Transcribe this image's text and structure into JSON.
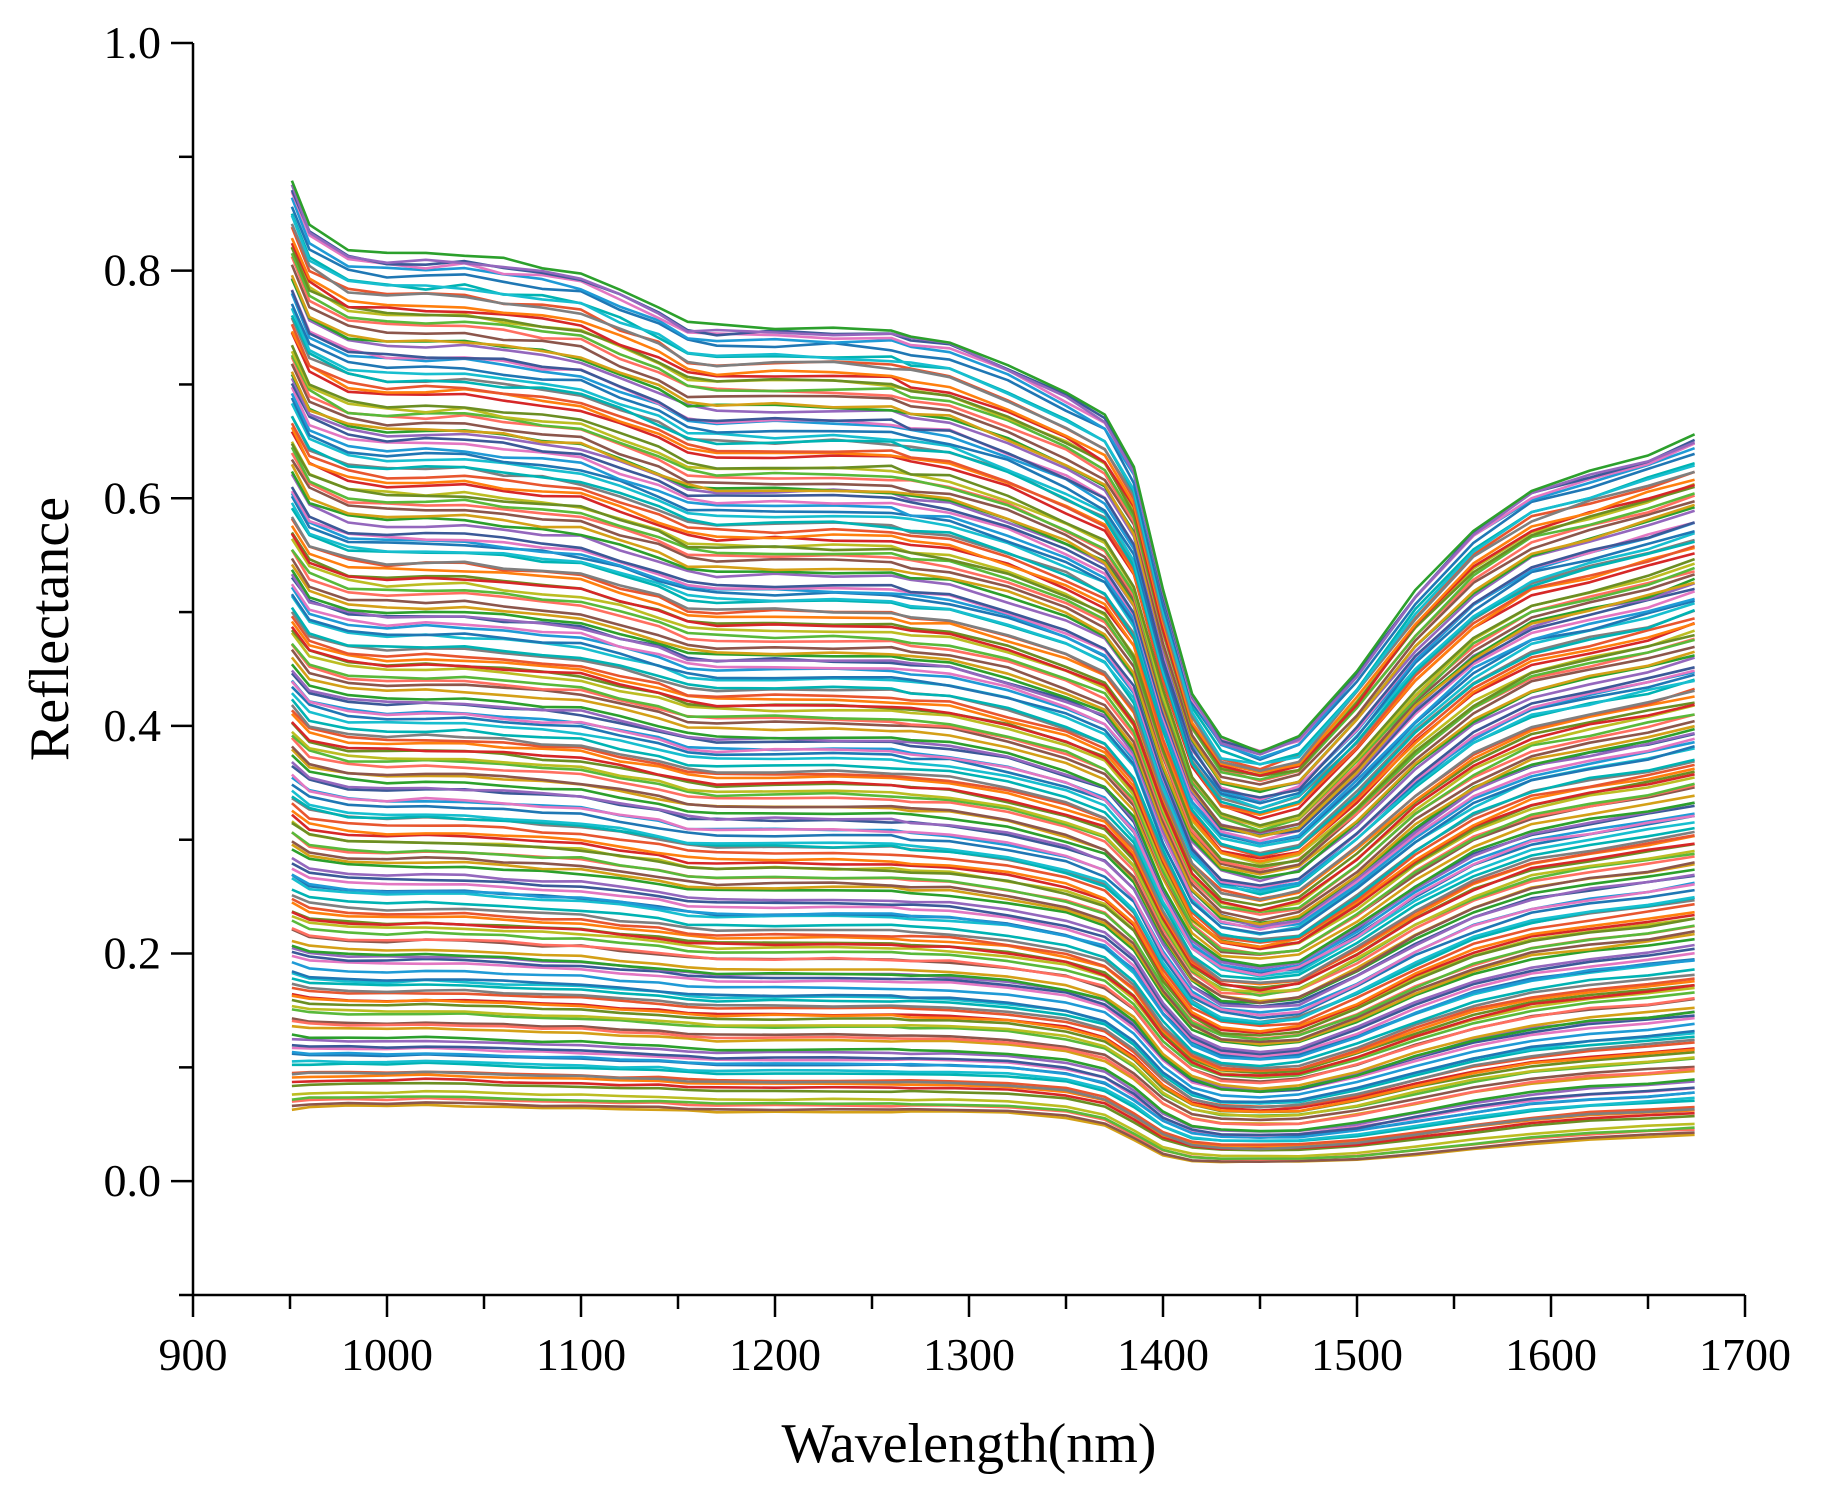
{
  "chart_data": {
    "type": "line",
    "title": "",
    "xlabel": "Wavelength(nm)",
    "ylabel": "Reflectance",
    "xlim": [
      900,
      1700
    ],
    "ylim": [
      -0.1,
      1.0
    ],
    "x_ticks": [
      900,
      1000,
      1100,
      1200,
      1300,
      1400,
      1500,
      1600,
      1700
    ],
    "x_tick_labels": [
      "900",
      "1000",
      "1100",
      "1200",
      "1300",
      "1400",
      "1500",
      "1600",
      "1700"
    ],
    "y_ticks": [
      0.0,
      0.2,
      0.4,
      0.6,
      0.8,
      1.0
    ],
    "y_tick_labels": [
      "0.0",
      "0.2",
      "0.4",
      "0.6",
      "0.8",
      "1.0"
    ],
    "grid": false,
    "legend": "none",
    "x": [
      951,
      960,
      980,
      1000,
      1020,
      1040,
      1060,
      1080,
      1100,
      1120,
      1140,
      1155,
      1170,
      1200,
      1230,
      1260,
      1270,
      1290,
      1320,
      1350,
      1370,
      1385,
      1400,
      1415,
      1430,
      1450,
      1470,
      1500,
      1530,
      1560,
      1590,
      1620,
      1650,
      1674
    ],
    "series_count": 180,
    "envelopes": {
      "upper": [
        0.88,
        0.84,
        0.82,
        0.815,
        0.815,
        0.815,
        0.81,
        0.805,
        0.8,
        0.785,
        0.77,
        0.755,
        0.752,
        0.752,
        0.752,
        0.75,
        0.745,
        0.74,
        0.72,
        0.695,
        0.675,
        0.63,
        0.52,
        0.43,
        0.39,
        0.38,
        0.39,
        0.45,
        0.52,
        0.575,
        0.61,
        0.625,
        0.64,
        0.655
      ],
      "lower": [
        0.062,
        0.064,
        0.065,
        0.065,
        0.066,
        0.065,
        0.064,
        0.063,
        0.063,
        0.062,
        0.062,
        0.061,
        0.06,
        0.06,
        0.06,
        0.06,
        0.06,
        0.06,
        0.059,
        0.055,
        0.048,
        0.035,
        0.022,
        0.017,
        0.016,
        0.016,
        0.016,
        0.018,
        0.022,
        0.027,
        0.032,
        0.036,
        0.038,
        0.04
      ]
    },
    "colors": [
      "#d4a017",
      "#1f9ad6",
      "#e8562f",
      "#59b93a",
      "#9467bd",
      "#17becf",
      "#d62728",
      "#8c564b",
      "#e377c2",
      "#7f7f7f",
      "#bcbd22",
      "#2ca02c",
      "#1f77b4",
      "#ff7f0e",
      "#ff6f61",
      "#3b5998",
      "#00b3b3",
      "#6b8e23"
    ]
  }
}
